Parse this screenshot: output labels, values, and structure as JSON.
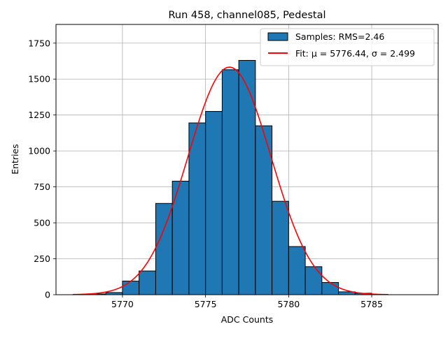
{
  "chart_data": {
    "type": "bar",
    "title": "Run 458, channel085, Pedestal",
    "xlabel": "ADC Counts",
    "ylabel": "Entries",
    "xlim": [
      5766.0,
      5789.0
    ],
    "ylim": [
      0,
      1880
    ],
    "grid": true,
    "legend_position": "top-right",
    "x_ticks": [
      5770,
      5775,
      5780,
      5785
    ],
    "y_ticks": [
      0,
      250,
      500,
      750,
      1000,
      1250,
      1500,
      1750
    ],
    "bin_edges": [
      5768,
      5769,
      5770,
      5771,
      5772,
      5773,
      5774,
      5775,
      5776,
      5777,
      5778,
      5779,
      5780,
      5781,
      5782,
      5783,
      5784,
      5785
    ],
    "counts": [
      5,
      15,
      95,
      165,
      635,
      790,
      1195,
      1275,
      1565,
      1630,
      1175,
      650,
      335,
      195,
      85,
      20,
      10
    ],
    "series": [
      {
        "name": "Samples: RMS=2.46",
        "kind": "histogram",
        "color": "#1f77b4",
        "edgecolor": "#000000"
      },
      {
        "name": "Fit: μ = 5776.44, σ = 2.499",
        "kind": "gaussian-fit",
        "color": "#ff0000",
        "mu": 5776.44,
        "sigma": 2.499,
        "amplitude": 1583,
        "x_range": [
          5767.0,
          5786.0
        ]
      }
    ]
  }
}
